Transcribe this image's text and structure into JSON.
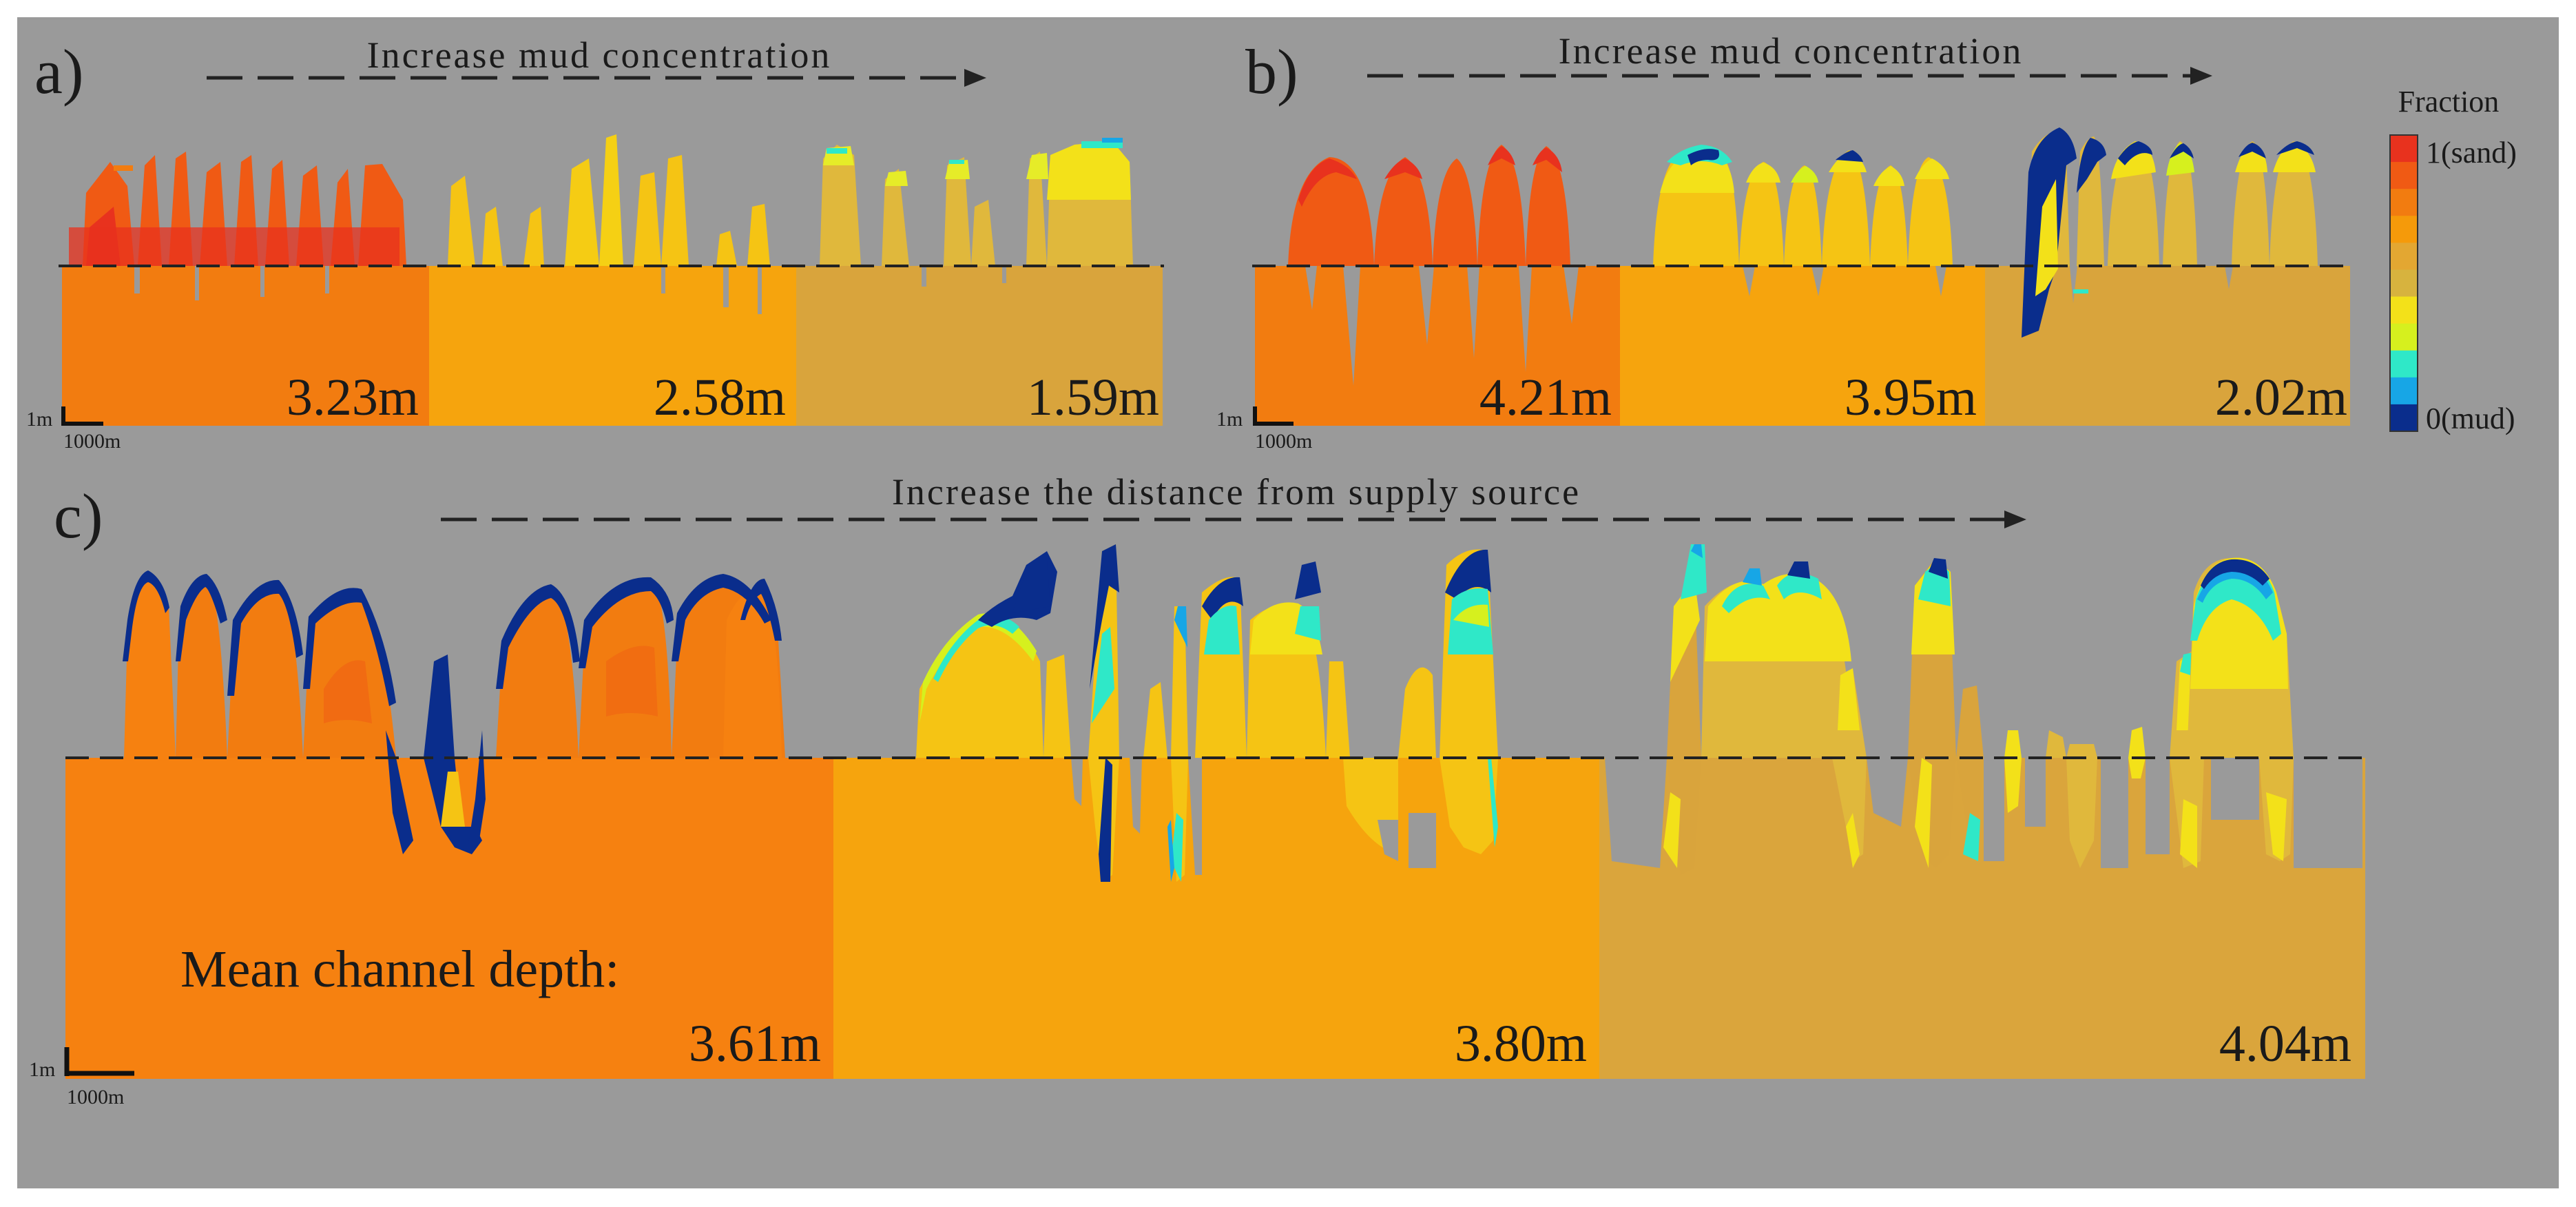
{
  "panels": {
    "a": {
      "label": "a)",
      "arrow_text": "Increase mud concentration",
      "depths": [
        "3.23m",
        "2.58m",
        "1.59m"
      ],
      "scale_v": "1m",
      "scale_h": "1000m"
    },
    "b": {
      "label": "b)",
      "arrow_text": "Increase mud concentration",
      "depths": [
        "4.21m",
        "3.95m",
        "2.02m"
      ],
      "scale_v": "1m",
      "scale_h": "1000m"
    },
    "c": {
      "label": "c)",
      "arrow_text": "Increase the distance from supply source",
      "mean_label": "Mean channel depth:",
      "depths": [
        "3.61m",
        "3.80m",
        "4.04m"
      ],
      "scale_v": "1m",
      "scale_h": "1000m"
    }
  },
  "legend": {
    "title": "Fraction",
    "top_label": "1(sand)",
    "bottom_label": "0(mud)",
    "colors": [
      "#e8321e",
      "#f05a14",
      "#f27c10",
      "#f59a0a",
      "#e3a732",
      "#d7b33e",
      "#f3e119",
      "#d6f01e",
      "#2fe8c8",
      "#17a6e6",
      "#0a2d8c"
    ]
  },
  "colors": {
    "figure_bg": "#9a9a9a",
    "sand": "#e8321e",
    "orange_sand": "#f27c10",
    "muddy_sand": "#f5a30a",
    "tan": "#daa53c",
    "yellow": "#f3e119",
    "cyan": "#2fe8c8",
    "mud": "#0a2d8c"
  }
}
